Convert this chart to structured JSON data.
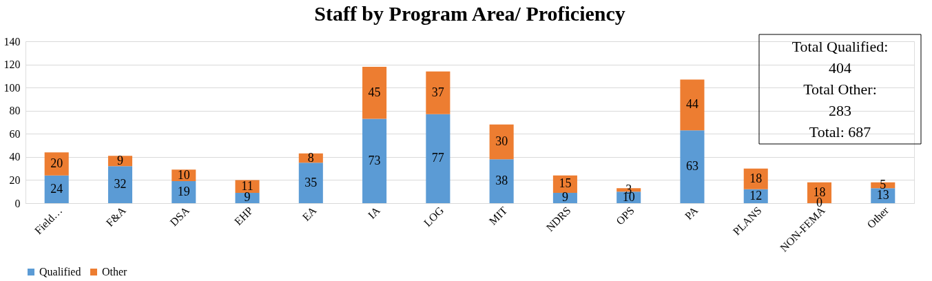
{
  "chart_data": {
    "type": "bar",
    "title": "Staff by Program Area/ Proficiency",
    "categories": [
      "Field…",
      "F&A",
      "DSA",
      "EHP",
      "EA",
      "IA",
      "LOG",
      "MIT",
      "NDRS",
      "OPS",
      "PA",
      "PLANS",
      "NON-FEMA",
      "Other"
    ],
    "series": [
      {
        "name": "Qualified",
        "color": "#5b9bd5",
        "values": [
          24,
          32,
          19,
          9,
          35,
          73,
          77,
          38,
          9,
          10,
          63,
          12,
          0,
          13
        ]
      },
      {
        "name": "Other",
        "color": "#ed7d31",
        "values": [
          20,
          9,
          10,
          11,
          8,
          45,
          37,
          30,
          15,
          3,
          44,
          18,
          18,
          5
        ]
      }
    ],
    "stacked": true,
    "data_labels": true,
    "ylim": [
      0,
      140
    ],
    "yticks": [
      0,
      20,
      40,
      60,
      80,
      100,
      120,
      140
    ],
    "grid": "y",
    "legend": "bottom",
    "annotations": [
      "Total Qualified:",
      "404",
      "Total Other:",
      "283",
      "Total: 687"
    ]
  }
}
